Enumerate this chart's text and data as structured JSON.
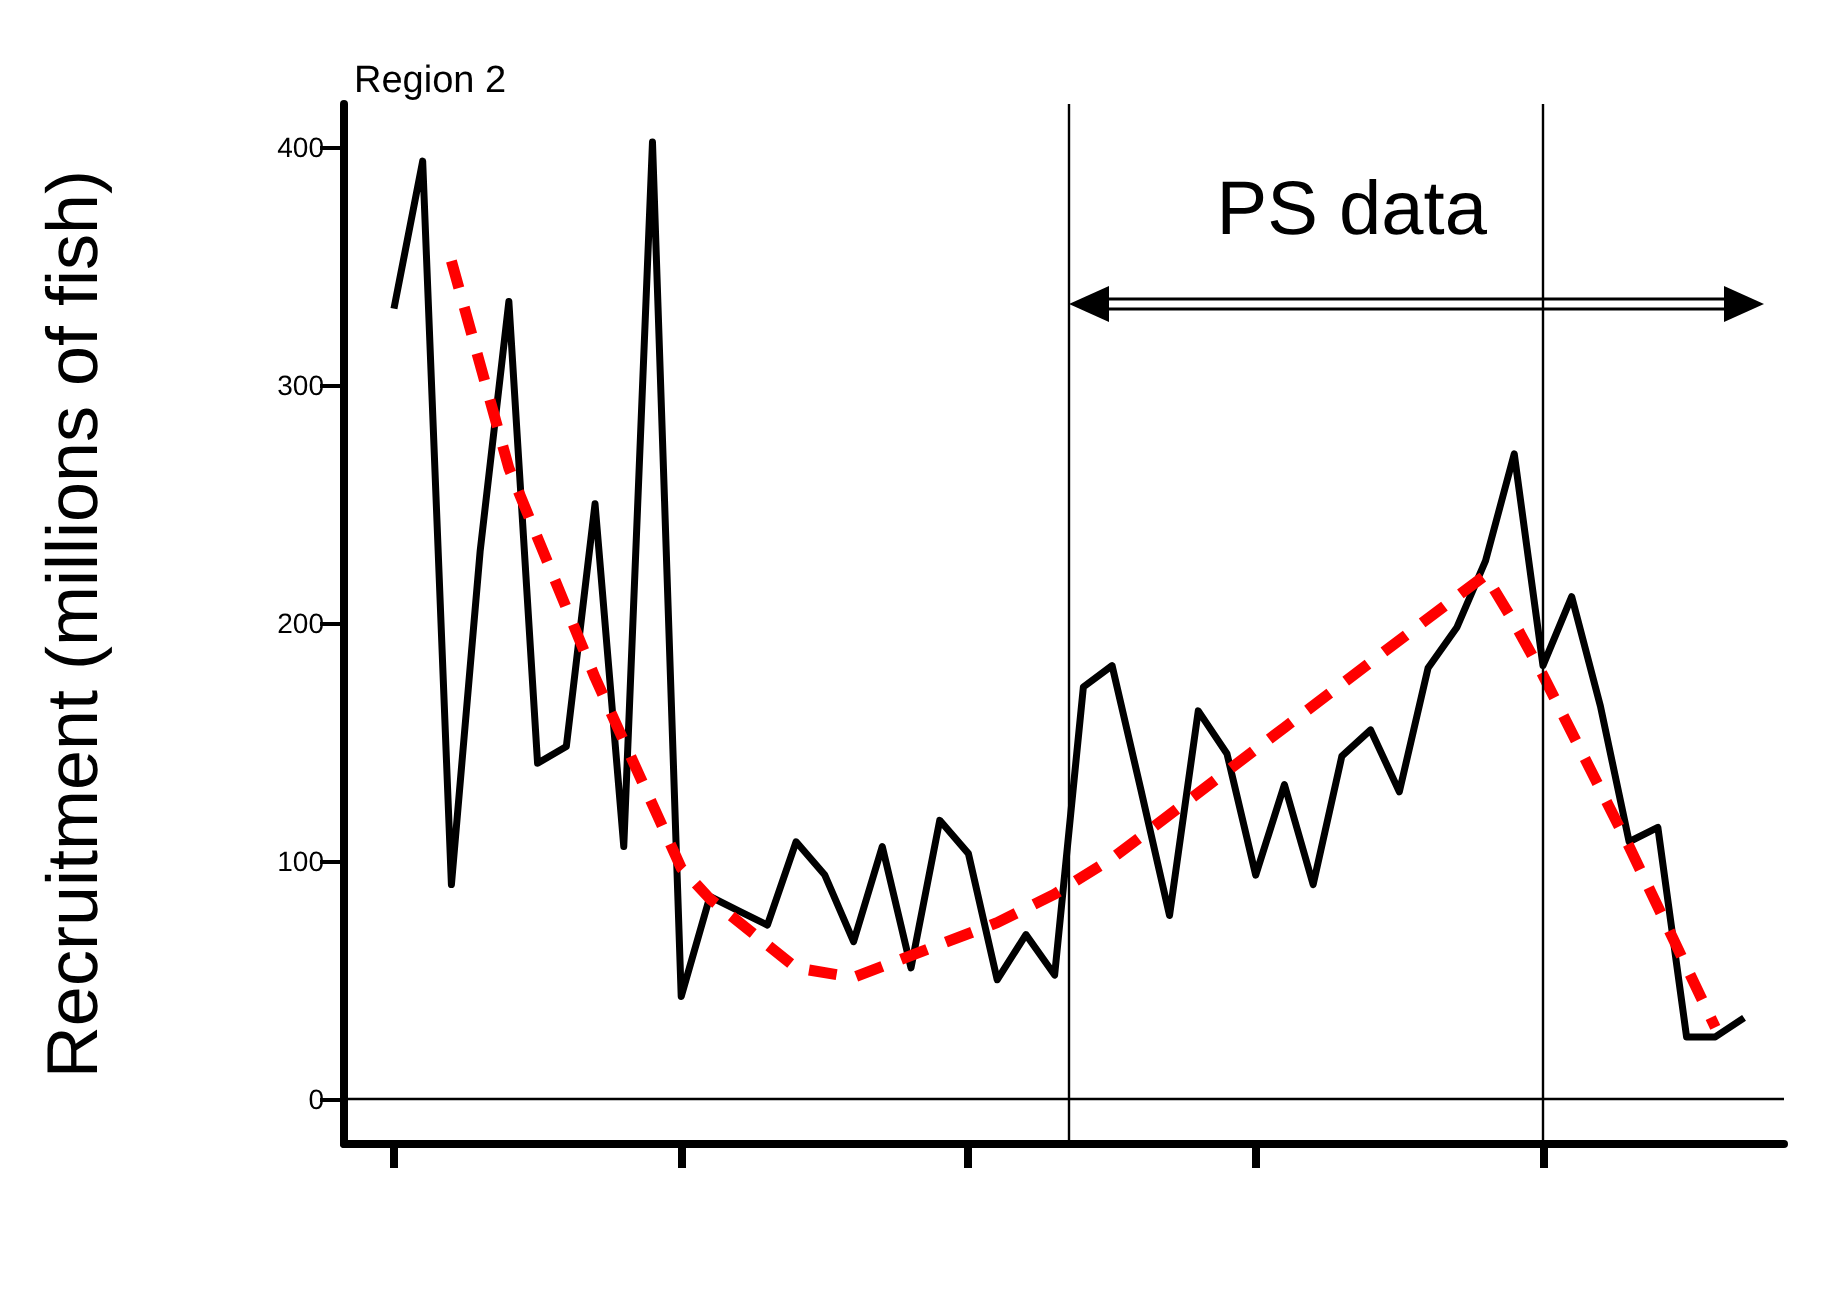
{
  "chart_data": {
    "type": "line",
    "title": "Region 2",
    "ylabel": "Recruitment (millions of fish)",
    "annotations": [
      "PS data"
    ],
    "categories": [
      null,
      null,
      null,
      null,
      null,
      null,
      null,
      null,
      null,
      null,
      null,
      null,
      null,
      null,
      null,
      null,
      null,
      null,
      null,
      null,
      null,
      null,
      null,
      null,
      null,
      null,
      null,
      null,
      null,
      null,
      null,
      null,
      null,
      null,
      null,
      null,
      null,
      null,
      null,
      null,
      null,
      null,
      null,
      null,
      null,
      null,
      null,
      null
    ],
    "series": [
      {
        "color": "#000000",
        "values": [
          332,
          394,
          90,
          230,
          335,
          141,
          148,
          250,
          106,
          402,
          43,
          85,
          79,
          73,
          108,
          94,
          66,
          106,
          55,
          117,
          103,
          50,
          69,
          52,
          173,
          182,
          130,
          77,
          163,
          145,
          94,
          132,
          90,
          144,
          155,
          129,
          181,
          198,
          226,
          271,
          182,
          211,
          165,
          108,
          114,
          26,
          26,
          34
        ]
      },
      {
        "type": "line",
        "color": "#ff0000",
        "line_style": "dashed",
        "values": [
          null,
          null,
          352,
          null,
          265,
          null,
          null,
          177,
          null,
          null,
          97,
          84,
          null,
          null,
          55,
          null,
          51,
          null,
          null,
          null,
          null,
          74,
          null,
          86,
          null,
          101,
          null,
          null,
          null,
          null,
          null,
          156,
          null,
          null,
          null,
          null,
          null,
          211,
          220,
          200,
          178,
          null,
          null,
          106,
          null,
          null,
          30,
          null
        ]
      }
    ],
    "ylim": [
      -19,
      418
    ],
    "yticks": [
      0,
      100,
      200,
      300,
      400
    ],
    "ref_lines": [
      {
        "axis": "y",
        "value": 0,
        "color": "#000000"
      }
    ],
    "tick_labels": "y",
    "grid": false,
    "marker": "none"
  }
}
